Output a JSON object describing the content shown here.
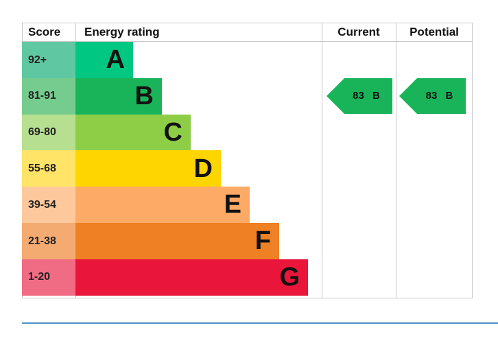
{
  "chart_data": {
    "type": "table",
    "headers": {
      "score": "Score",
      "rating": "Energy rating",
      "current": "Current",
      "potential": "Potential"
    },
    "bands": [
      {
        "score": "92+",
        "letter": "A",
        "color": "#00c781",
        "score_color": "#5fc8a3"
      },
      {
        "score": "81-91",
        "letter": "B",
        "color": "#19b459",
        "score_color": "#75cc8e"
      },
      {
        "score": "69-80",
        "letter": "C",
        "color": "#8dce46",
        "score_color": "#b7df90"
      },
      {
        "score": "55-68",
        "letter": "D",
        "color": "#ffd500",
        "score_color": "#ffe467"
      },
      {
        "score": "39-54",
        "letter": "E",
        "color": "#fcaa65",
        "score_color": "#fdc99c"
      },
      {
        "score": "21-38",
        "letter": "F",
        "color": "#ef8023",
        "score_color": "#f4ab72"
      },
      {
        "score": "1-20",
        "letter": "G",
        "color": "#e9153b",
        "score_color": "#f06c84"
      }
    ],
    "current": {
      "value": 83,
      "letter": "B",
      "label": "83  B",
      "color": "#19b459"
    },
    "potential": {
      "value": 83,
      "letter": "B",
      "label": "83  B",
      "color": "#19b459"
    }
  }
}
